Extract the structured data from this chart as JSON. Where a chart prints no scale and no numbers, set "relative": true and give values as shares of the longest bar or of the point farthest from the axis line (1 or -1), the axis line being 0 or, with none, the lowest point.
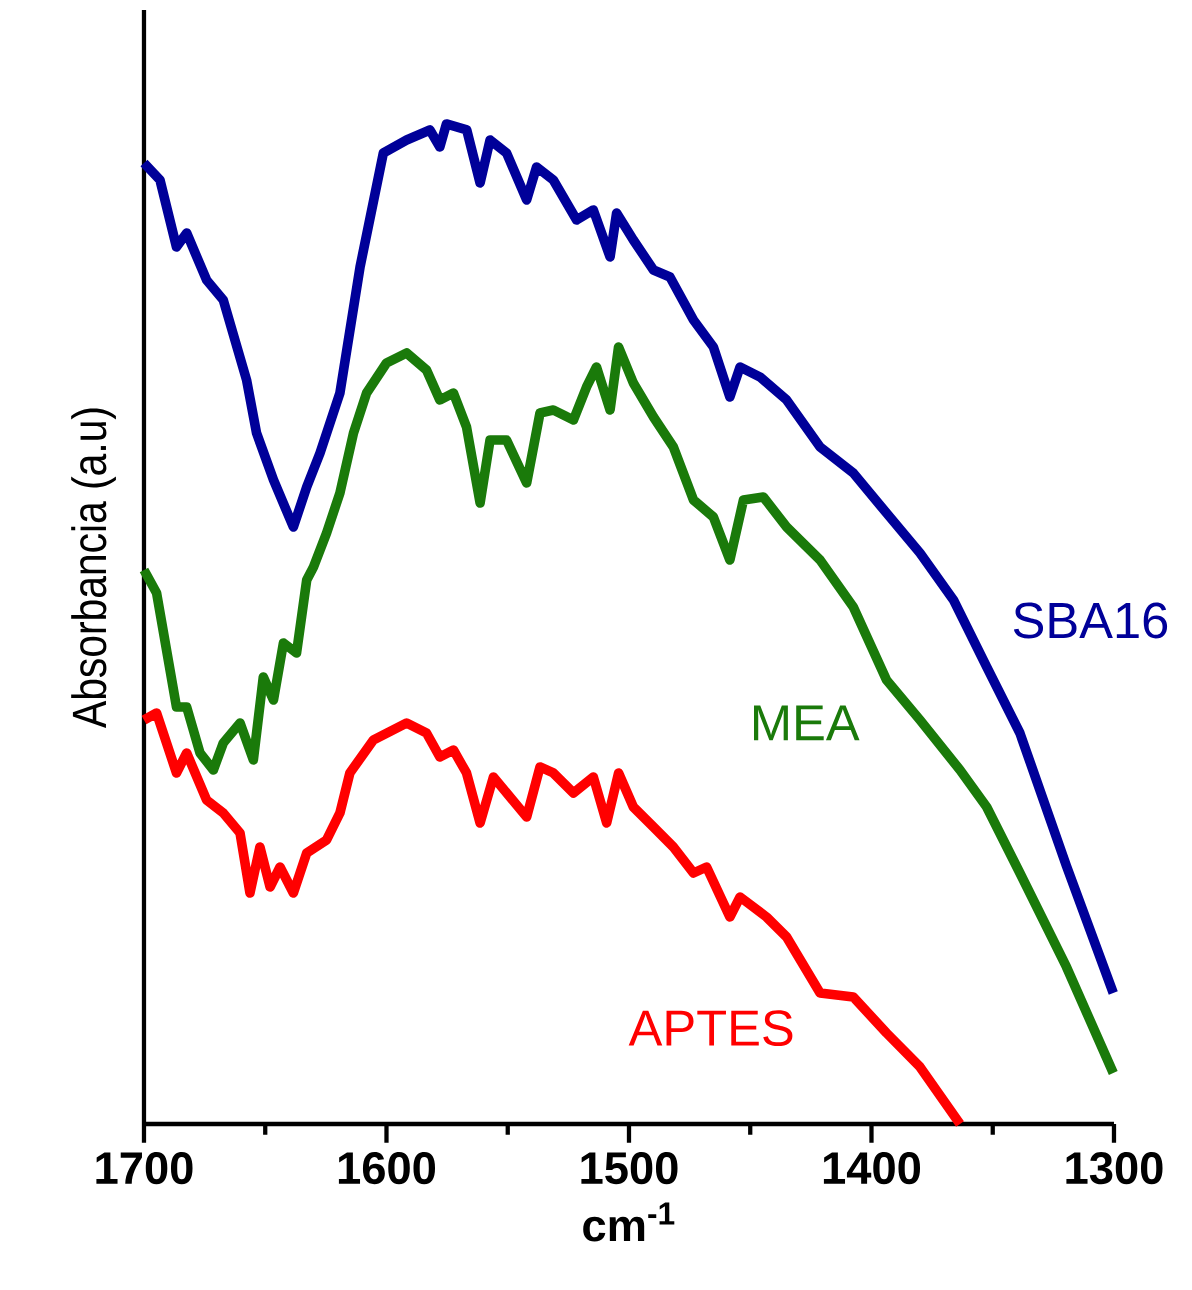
{
  "chart_data": {
    "type": "line",
    "relative": true,
    "xlabel": "cm$^{-1}$",
    "ylabel": "Absorbancia (a.u)",
    "xlim": [
      1700,
      1300
    ],
    "xticks": [
      1700,
      1600,
      1500,
      1400,
      1300
    ],
    "line_style": "solid",
    "series": [
      {
        "name": "SBA16",
        "color": "#000099",
        "x": [
          1700,
          1693.4,
          1686.6,
          1682.4,
          1674.2,
          1667.3,
          1657.7,
          1653.6,
          1646.6,
          1638.4,
          1632.9,
          1627.4,
          1619.2,
          1610.9,
          1601.3,
          1591.7,
          1582.1,
          1578.0,
          1575.3,
          1566.9,
          1561.4,
          1557.3,
          1550.5,
          1542.2,
          1538.1,
          1531.2,
          1521.6,
          1514.7,
          1507.8,
          1505.1,
          1498.2,
          1489.9,
          1483.1,
          1473.4,
          1465.2,
          1458.4,
          1454.2,
          1446.0,
          1435.0,
          1421.2,
          1407.5,
          1393.8,
          1380.0,
          1366.2,
          1352.5,
          1338.8,
          1319.6,
          1300.3
        ],
        "values": [
          0.961,
          0.944,
          0.877,
          0.891,
          0.844,
          0.824,
          0.744,
          0.691,
          0.644,
          0.597,
          0.637,
          0.671,
          0.731,
          0.857,
          0.971,
          0.984,
          0.994,
          0.977,
          1.0,
          0.994,
          0.941,
          0.984,
          0.971,
          0.924,
          0.957,
          0.944,
          0.904,
          0.914,
          0.867,
          0.911,
          0.884,
          0.854,
          0.847,
          0.804,
          0.777,
          0.727,
          0.757,
          0.747,
          0.724,
          0.677,
          0.651,
          0.611,
          0.571,
          0.524,
          0.457,
          0.391,
          0.258,
          0.131
        ]
      },
      {
        "name": "MEA",
        "color": "#1a7a0a",
        "x": [
          1700,
          1694.8,
          1686.6,
          1682.4,
          1676.9,
          1671.4,
          1667.3,
          1660.4,
          1654.9,
          1650.8,
          1646.6,
          1642.5,
          1637.1,
          1632.9,
          1630.1,
          1624.7,
          1619.2,
          1613.6,
          1608.2,
          1600.0,
          1591.7,
          1583.5,
          1578.0,
          1572.4,
          1567.0,
          1561.4,
          1557.3,
          1550.5,
          1542.2,
          1536.7,
          1531.2,
          1522.9,
          1517.5,
          1513.4,
          1507.8,
          1504.3,
          1498.2,
          1489.9,
          1481.7,
          1473.4,
          1465.2,
          1458.4,
          1452.8,
          1444.6,
          1435.0,
          1421.2,
          1407.5,
          1393.8,
          1380.0,
          1363.5,
          1352.5,
          1338.8,
          1319.6,
          1300.3
        ],
        "values": [
          0.554,
          0.531,
          0.417,
          0.417,
          0.371,
          0.354,
          0.381,
          0.401,
          0.364,
          0.447,
          0.424,
          0.481,
          0.471,
          0.544,
          0.557,
          0.591,
          0.631,
          0.691,
          0.731,
          0.761,
          0.771,
          0.754,
          0.724,
          0.731,
          0.697,
          0.621,
          0.684,
          0.684,
          0.641,
          0.711,
          0.714,
          0.704,
          0.737,
          0.757,
          0.714,
          0.777,
          0.741,
          0.707,
          0.677,
          0.624,
          0.607,
          0.564,
          0.624,
          0.627,
          0.597,
          0.564,
          0.517,
          0.444,
          0.404,
          0.354,
          0.317,
          0.251,
          0.157,
          0.051
        ]
      },
      {
        "name": "APTES",
        "color": "#ff0000",
        "x": [
          1700,
          1694.8,
          1686.6,
          1682.4,
          1674.2,
          1667.3,
          1660.4,
          1656.3,
          1652.2,
          1648.0,
          1643.9,
          1638.4,
          1632.9,
          1624.7,
          1619.2,
          1615.1,
          1605.4,
          1591.7,
          1583.5,
          1578.0,
          1572.4,
          1567.0,
          1561.4,
          1555.9,
          1542.2,
          1536.7,
          1531.2,
          1522.9,
          1514.7,
          1509.2,
          1504.3,
          1498.2,
          1489.9,
          1481.7,
          1473.4,
          1468.0,
          1458.4,
          1454.2,
          1443.3,
          1435.0,
          1421.2,
          1407.5,
          1393.8,
          1380.0,
          1363.5
        ],
        "values": [
          0.404,
          0.411,
          0.351,
          0.371,
          0.324,
          0.311,
          0.291,
          0.231,
          0.277,
          0.237,
          0.257,
          0.231,
          0.271,
          0.284,
          0.311,
          0.351,
          0.384,
          0.401,
          0.391,
          0.367,
          0.374,
          0.351,
          0.301,
          0.347,
          0.307,
          0.357,
          0.351,
          0.331,
          0.347,
          0.301,
          0.351,
          0.317,
          0.297,
          0.277,
          0.251,
          0.257,
          0.207,
          0.227,
          0.207,
          0.187,
          0.131,
          0.127,
          0.091,
          0.057,
          0.0
        ]
      }
    ]
  }
}
